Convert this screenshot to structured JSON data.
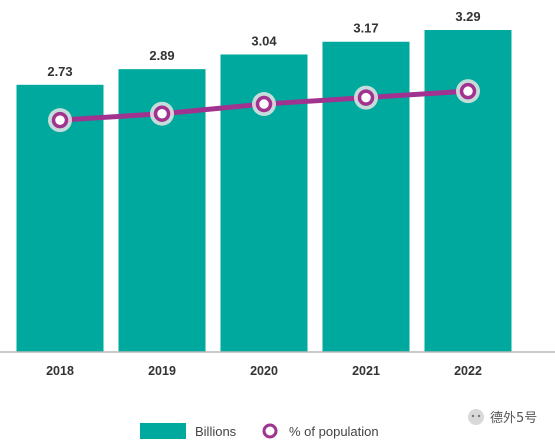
{
  "chart_data": {
    "type": "bar",
    "categories": [
      "2018",
      "2019",
      "2020",
      "2021",
      "2022"
    ],
    "series": [
      {
        "name": "Billions",
        "kind": "bar",
        "values": [
          2.73,
          2.89,
          3.04,
          3.17,
          3.29
        ],
        "color": "#00A99D"
      },
      {
        "name": "% of population",
        "kind": "line",
        "values": [
          0.36,
          0.37,
          0.385,
          0.395,
          0.405
        ],
        "color": "#A0338F"
      }
    ],
    "data_labels": [
      "2.73",
      "2.89",
      "3.04",
      "3.17",
      "3.29"
    ],
    "ylim": [
      0,
      3.29
    ],
    "line_ylim": [
      0,
      0.5
    ],
    "legend": {
      "position": "bottom",
      "bar_label": "Billions",
      "line_label": "% of population"
    },
    "grid": false
  },
  "watermark": {
    "text": "德外5号"
  }
}
